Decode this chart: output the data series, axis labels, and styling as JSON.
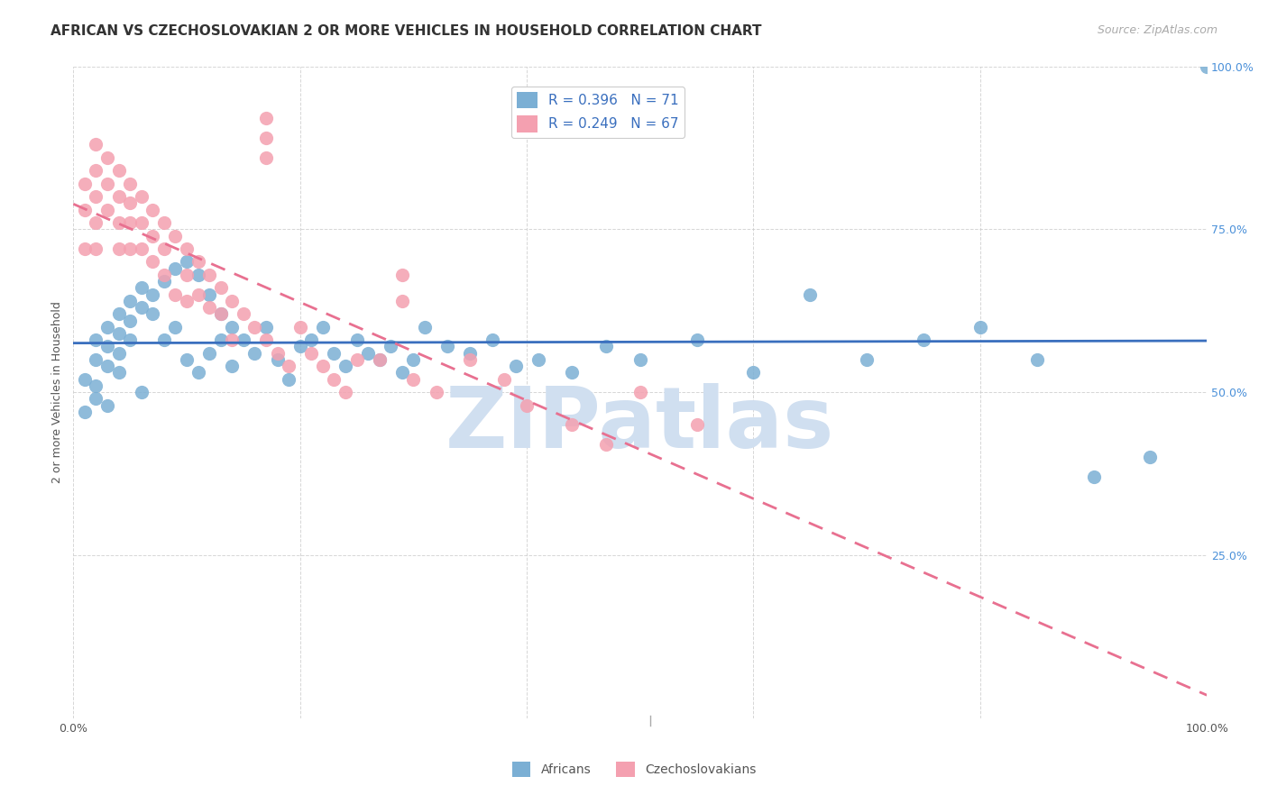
{
  "title": "AFRICAN VS CZECHOSLOVAKIAN 2 OR MORE VEHICLES IN HOUSEHOLD CORRELATION CHART",
  "source": "Source: ZipAtlas.com",
  "ylabel": "2 or more Vehicles in Household",
  "xmin": 0.0,
  "xmax": 1.0,
  "ymin": 0.0,
  "ymax": 1.0,
  "xticks": [
    0.0,
    0.2,
    0.4,
    0.6,
    0.8,
    1.0
  ],
  "yticks": [
    0.0,
    0.25,
    0.5,
    0.75,
    1.0
  ],
  "xtick_labels": [
    "0.0%",
    "",
    "",
    "",
    "",
    "100.0%"
  ],
  "ytick_labels": [
    "",
    "25.0%",
    "50.0%",
    "75.0%",
    "100.0%"
  ],
  "legend_labels": [
    "Africans",
    "Czechoslovakians"
  ],
  "legend_R": [
    0.396,
    0.249
  ],
  "legend_N": [
    71,
    67
  ],
  "blue_color": "#7bafd4",
  "pink_color": "#f4a0b0",
  "blue_line_color": "#3a6fbe",
  "pink_line_color": "#e87090",
  "watermark": "ZIPatlas",
  "watermark_color": "#d0dff0",
  "africans_x": [
    0.01,
    0.01,
    0.02,
    0.02,
    0.02,
    0.02,
    0.03,
    0.03,
    0.03,
    0.03,
    0.04,
    0.04,
    0.04,
    0.04,
    0.05,
    0.05,
    0.05,
    0.06,
    0.06,
    0.06,
    0.07,
    0.07,
    0.08,
    0.08,
    0.09,
    0.09,
    0.1,
    0.1,
    0.11,
    0.11,
    0.12,
    0.12,
    0.13,
    0.13,
    0.14,
    0.14,
    0.15,
    0.16,
    0.17,
    0.18,
    0.19,
    0.2,
    0.21,
    0.22,
    0.23,
    0.24,
    0.25,
    0.26,
    0.27,
    0.28,
    0.29,
    0.3,
    0.31,
    0.33,
    0.35,
    0.37,
    0.39,
    0.41,
    0.44,
    0.47,
    0.5,
    0.55,
    0.6,
    0.65,
    0.7,
    0.75,
    0.8,
    0.85,
    0.9,
    0.95,
    1.0
  ],
  "africans_y": [
    0.52,
    0.47,
    0.58,
    0.55,
    0.51,
    0.49,
    0.6,
    0.57,
    0.54,
    0.48,
    0.62,
    0.59,
    0.56,
    0.53,
    0.64,
    0.61,
    0.58,
    0.66,
    0.63,
    0.5,
    0.65,
    0.62,
    0.67,
    0.58,
    0.69,
    0.6,
    0.7,
    0.55,
    0.68,
    0.53,
    0.65,
    0.56,
    0.62,
    0.58,
    0.6,
    0.54,
    0.58,
    0.56,
    0.6,
    0.55,
    0.52,
    0.57,
    0.58,
    0.6,
    0.56,
    0.54,
    0.58,
    0.56,
    0.55,
    0.57,
    0.53,
    0.55,
    0.6,
    0.57,
    0.56,
    0.58,
    0.54,
    0.55,
    0.53,
    0.57,
    0.55,
    0.58,
    0.53,
    0.65,
    0.55,
    0.58,
    0.6,
    0.55,
    0.37,
    0.4,
    1.0
  ],
  "czechoslovakians_x": [
    0.01,
    0.01,
    0.01,
    0.02,
    0.02,
    0.02,
    0.02,
    0.02,
    0.03,
    0.03,
    0.03,
    0.04,
    0.04,
    0.04,
    0.04,
    0.05,
    0.05,
    0.05,
    0.05,
    0.06,
    0.06,
    0.06,
    0.07,
    0.07,
    0.07,
    0.08,
    0.08,
    0.08,
    0.09,
    0.09,
    0.1,
    0.1,
    0.1,
    0.11,
    0.11,
    0.12,
    0.12,
    0.13,
    0.13,
    0.14,
    0.14,
    0.15,
    0.16,
    0.17,
    0.18,
    0.19,
    0.2,
    0.21,
    0.22,
    0.23,
    0.24,
    0.25,
    0.27,
    0.3,
    0.32,
    0.35,
    0.38,
    0.4,
    0.44,
    0.47,
    0.5,
    0.55,
    0.17,
    0.17,
    0.17,
    0.29,
    0.29
  ],
  "czechoslovakians_y": [
    0.82,
    0.78,
    0.72,
    0.88,
    0.84,
    0.8,
    0.76,
    0.72,
    0.86,
    0.82,
    0.78,
    0.84,
    0.8,
    0.76,
    0.72,
    0.82,
    0.79,
    0.76,
    0.72,
    0.8,
    0.76,
    0.72,
    0.78,
    0.74,
    0.7,
    0.76,
    0.72,
    0.68,
    0.74,
    0.65,
    0.72,
    0.68,
    0.64,
    0.7,
    0.65,
    0.68,
    0.63,
    0.66,
    0.62,
    0.64,
    0.58,
    0.62,
    0.6,
    0.58,
    0.56,
    0.54,
    0.6,
    0.56,
    0.54,
    0.52,
    0.5,
    0.55,
    0.55,
    0.52,
    0.5,
    0.55,
    0.52,
    0.48,
    0.45,
    0.42,
    0.5,
    0.45,
    0.92,
    0.89,
    0.86,
    0.68,
    0.64
  ],
  "title_fontsize": 11,
  "source_fontsize": 9,
  "axis_label_fontsize": 9,
  "tick_fontsize": 9,
  "legend_fontsize": 11
}
